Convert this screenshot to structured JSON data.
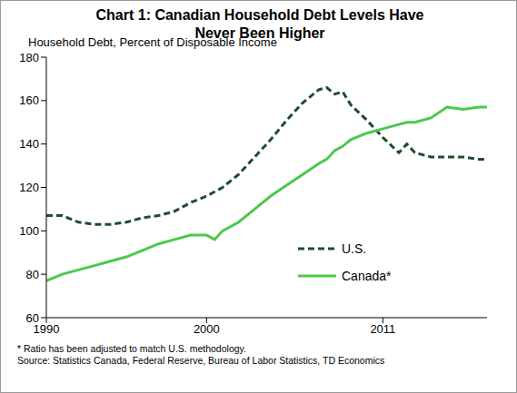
{
  "chart_data": {
    "type": "line",
    "title": "Chart 1: Canadian Household Debt Levels Have Never Been Higher",
    "y_label": "Household Debt, Percent of Disposable Income",
    "notes": [
      "* Ratio has been adjusted to match U.S. methodology.",
      "Source: Statistics Canada, Federal Reserve, Bureau of Labor Statistics, TD Economics"
    ],
    "x": [
      1990,
      1991,
      1992,
      1993,
      1994,
      1995,
      1996,
      1997,
      1998,
      1999,
      2000,
      2000.5,
      2001,
      2002,
      2003,
      2004,
      2005,
      2006,
      2007,
      2007.5,
      2008,
      2008.5,
      2009,
      2010,
      2011,
      2012,
      2012.5,
      2013,
      2014,
      2015,
      2016,
      2017,
      2017.5
    ],
    "series": [
      {
        "name": "U.S.",
        "color": "#1f4d2c",
        "line_style": "dashed",
        "values": [
          107,
          107,
          104,
          103,
          103,
          104,
          106,
          107,
          109,
          113,
          116,
          118,
          120,
          126,
          134,
          142,
          151,
          159,
          165,
          166,
          163,
          164,
          158,
          151,
          143,
          136,
          140,
          136,
          134,
          134,
          134,
          133,
          133
        ]
      },
      {
        "name": "Canada*",
        "color": "#4cc84c",
        "line_style": "solid",
        "values": [
          77,
          80,
          82,
          84,
          86,
          88,
          91,
          94,
          96,
          98,
          98,
          96,
          100,
          104,
          110,
          116,
          121,
          126,
          131,
          133,
          137,
          139,
          142,
          145,
          147,
          149,
          150,
          150,
          152,
          157,
          156,
          157,
          157
        ]
      }
    ],
    "xlim": [
      1990,
      2017.5
    ],
    "xticks": [
      1990,
      2000,
      2011
    ],
    "ylim": [
      60,
      180
    ],
    "yticks": [
      60,
      80,
      100,
      120,
      140,
      160,
      180
    ],
    "grid": false,
    "legend": "bottom right"
  }
}
